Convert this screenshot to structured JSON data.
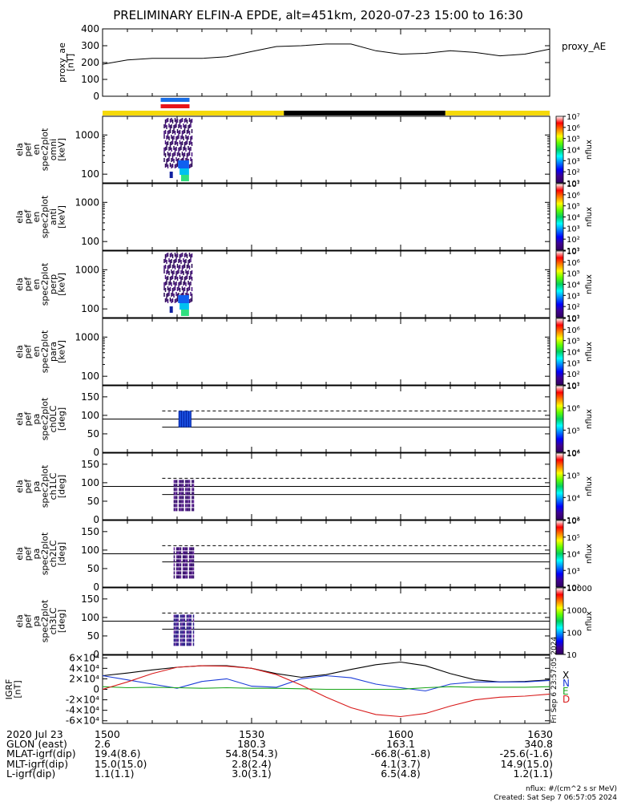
{
  "title": "PRELIMINARY ELFIN-A EPDE, alt=451km, 2020-07-23 15:00 to 16:30",
  "colors": {
    "sci_zone_blue": "#1a6fe8",
    "sci_zone_red": "#e8141a",
    "daylight_bar": "#f5d90a",
    "night_bar": "#000000",
    "field_x": "#000000",
    "field_n": "#1a3bd8",
    "field_e": "#1aa51a",
    "field_d": "#d81a1a"
  },
  "panels": {
    "proxy": {
      "ylabel": [
        "proxy_ae",
        "[nT]"
      ],
      "legend": "proxy_AE",
      "ticks": [
        "0",
        "100",
        "200",
        "300",
        "400"
      ]
    },
    "omni": {
      "ylabel": [
        "ela",
        "pef",
        "en",
        "spec2plot",
        "omni",
        "[keV]"
      ],
      "ticks": [
        "100",
        "1000"
      ],
      "zticks": [
        "10⁷",
        "10⁶",
        "10⁵",
        "10⁴",
        "10³",
        "10²",
        "10¹"
      ],
      "zunit": "nflux"
    },
    "anti": {
      "ylabel": [
        "ela",
        "pef",
        "en",
        "spec2plot",
        "anti",
        "[keV]"
      ],
      "ticks": [
        "100",
        "1000"
      ],
      "zticks": [
        "10⁷",
        "10⁶",
        "10⁵",
        "10⁴",
        "10³",
        "10²",
        "10¹"
      ],
      "zunit": "nflux"
    },
    "perp": {
      "ylabel": [
        "ela",
        "pef",
        "en",
        "spec2plot",
        "perp",
        "[keV]"
      ],
      "ticks": [
        "100",
        "1000"
      ],
      "zticks": [
        "10⁷",
        "10⁶",
        "10⁵",
        "10⁴",
        "10³",
        "10²",
        "10¹"
      ],
      "zunit": "nflux"
    },
    "para": {
      "ylabel": [
        "ela",
        "pef",
        "en",
        "spec2plot",
        "para",
        "[keV]"
      ],
      "ticks": [
        "100",
        "1000"
      ],
      "zticks": [
        "10⁷",
        "10⁶",
        "10⁵",
        "10⁴",
        "10³",
        "10²",
        "10¹"
      ],
      "zunit": "nflux"
    },
    "ch0": {
      "ylabel": [
        "ela",
        "pef",
        "pa",
        "spec2plot",
        "ch0LC",
        "[deg]"
      ],
      "ticks": [
        "0",
        "50",
        "100",
        "150"
      ],
      "zticks": [
        "10⁷",
        "10⁶",
        "10⁵",
        "10⁴"
      ],
      "zunit": "nflux"
    },
    "ch1": {
      "ylabel": [
        "ela",
        "pef",
        "pa",
        "spec2plot",
        "ch1LC",
        "[deg]"
      ],
      "ticks": [
        "0",
        "50",
        "100",
        "150"
      ],
      "zticks": [
        "10⁶",
        "10⁵",
        "10⁴",
        "10³"
      ],
      "zunit": "nflux"
    },
    "ch2": {
      "ylabel": [
        "ela",
        "pef",
        "pa",
        "spec2plot",
        "ch2LC",
        "[deg]"
      ],
      "ticks": [
        "0",
        "50",
        "100",
        "150"
      ],
      "zticks": [
        "10⁶",
        "10⁵",
        "10⁴",
        "10³",
        "10²"
      ],
      "zunit": "nflux"
    },
    "ch3": {
      "ylabel": [
        "ela",
        "pef",
        "pa",
        "spec2plot",
        "ch3LC",
        "[deg]"
      ],
      "ticks": [
        "0",
        "50",
        "100",
        "150"
      ],
      "zticks": [
        "10000",
        "1000",
        "100",
        "10"
      ],
      "zunit": "nflux"
    },
    "igrf": {
      "ylabel": [
        "IGRF",
        "[nT]"
      ],
      "ticks": [
        "-6×10⁴",
        "-4×10⁴",
        "-2×10⁴",
        "0",
        "2×10⁴",
        "4×10⁴",
        "6×10⁴"
      ],
      "legend": [
        "X",
        "N",
        "E",
        "D"
      ]
    }
  },
  "xaxis": {
    "row_labels": [
      "2020 Jul 23",
      "GLON (east)",
      "MLAT-igrf(dip)",
      "MLT-igrf(dip)",
      "L-igrf(dip)"
    ],
    "times": [
      "1500",
      "1530",
      "1600",
      "1630"
    ],
    "glon": [
      "2.6",
      "180.3",
      "163.1",
      "340.8"
    ],
    "mlat": [
      "19.4(8.6)",
      "54.8(54.3)",
      "-66.8(-61.8)",
      "-25.6(-1.6)"
    ],
    "mlt": [
      "15.0(15.0)",
      "2.8(2.4)",
      "4.1(3.7)",
      "14.9(15.0)"
    ],
    "lval": [
      "1.1(1.1)",
      "3.0(3.1)",
      "6.5(4.8)",
      "1.2(1.1)"
    ]
  },
  "footer": {
    "units": "nflux: #/(cm^2 s sr MeV)",
    "created": "Created: Sat Sep  7 06:57:05 2024",
    "side_stamp": "Fri Sep  6 23:57:05 2024"
  },
  "chart_data": [
    {
      "type": "line",
      "name": "proxy_AE",
      "x_unit": "UT (hhmm)",
      "x": [
        "15:00",
        "15:05",
        "15:10",
        "15:15",
        "15:20",
        "15:25",
        "15:30",
        "15:35",
        "15:40",
        "15:45",
        "15:50",
        "15:55",
        "16:00",
        "16:05",
        "16:10",
        "16:15",
        "16:20",
        "16:25",
        "16:30"
      ],
      "values": [
        190,
        215,
        225,
        225,
        225,
        235,
        265,
        295,
        300,
        310,
        310,
        270,
        250,
        255,
        270,
        260,
        240,
        250,
        280
      ],
      "ylim": [
        0,
        400
      ]
    },
    {
      "type": "line",
      "name": "IGRF",
      "x": [
        "15:00",
        "15:05",
        "15:10",
        "15:15",
        "15:20",
        "15:25",
        "15:30",
        "15:35",
        "15:40",
        "15:45",
        "15:50",
        "15:55",
        "16:00",
        "16:05",
        "16:10",
        "16:15",
        "16:20",
        "16:25",
        "16:30"
      ],
      "series": [
        {
          "name": "X",
          "values": [
            26000,
            31000,
            37000,
            42000,
            45000,
            45000,
            40000,
            30000,
            23000,
            28000,
            38000,
            47000,
            52000,
            45000,
            30000,
            18000,
            14000,
            15000,
            18000
          ]
        },
        {
          "name": "N",
          "values": [
            26000,
            18000,
            10000,
            2000,
            15000,
            20000,
            6000,
            4000,
            20000,
            26000,
            22000,
            10000,
            3000,
            -3000,
            10000,
            14000,
            14000,
            14000,
            17000
          ]
        },
        {
          "name": "E",
          "values": [
            5000,
            3000,
            4000,
            3000,
            2000,
            3000,
            2000,
            2000,
            1000,
            0,
            0,
            0,
            0,
            3000,
            5000,
            4000,
            4000,
            4000,
            5000
          ]
        },
        {
          "name": "D",
          "values": [
            0,
            14000,
            30000,
            42000,
            45000,
            44000,
            40000,
            28000,
            8000,
            -15000,
            -35000,
            -48000,
            -52000,
            -46000,
            -32000,
            -20000,
            -15000,
            -13000,
            -9000
          ]
        }
      ],
      "ylim": [
        -60000,
        60000
      ]
    },
    {
      "type": "heatmap",
      "name": "omni",
      "x_range": [
        "15:11",
        "15:17"
      ],
      "y_range_keV": [
        60,
        3000
      ],
      "note_levels": "nflux 10^1 to 10^7"
    }
  ]
}
